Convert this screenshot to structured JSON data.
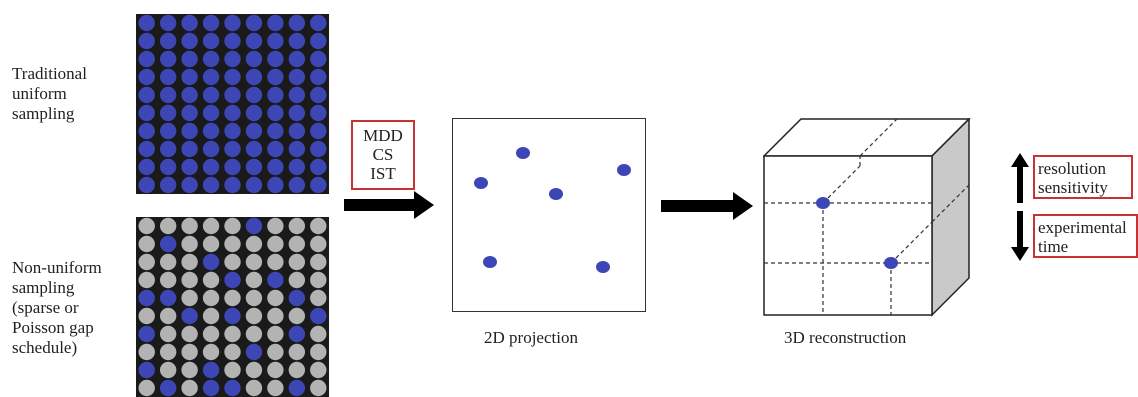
{
  "labels": {
    "traditional": "Traditional\nuniform\nsampling",
    "nonuniform": "Non-uniform\nsampling\n(sparse or\nPoisson gap\nschedule)"
  },
  "methods": [
    "MDD",
    "CS",
    "IST"
  ],
  "captions": {
    "projection": "2D projection",
    "reconstruction": "3D reconstruction"
  },
  "effects": {
    "up": [
      "resolution",
      "sensitivity"
    ],
    "down": [
      "experimental",
      "time"
    ]
  },
  "colors": {
    "sampled_point": "#3d46b5",
    "unsampled_point": "#b3b3b3",
    "highlight_box": "#c83232",
    "arrow": "#000000"
  },
  "sampling": {
    "rows": 10,
    "cols": 9,
    "nonuniform_sampled": [
      [
        0,
        5
      ],
      [
        1,
        1
      ],
      [
        2,
        3
      ],
      [
        3,
        4
      ],
      [
        3,
        6
      ],
      [
        4,
        0
      ],
      [
        4,
        1
      ],
      [
        4,
        7
      ],
      [
        5,
        2
      ],
      [
        5,
        4
      ],
      [
        5,
        8
      ],
      [
        6,
        0
      ],
      [
        6,
        7
      ],
      [
        7,
        5
      ],
      [
        8,
        0
      ],
      [
        8,
        3
      ],
      [
        9,
        1
      ],
      [
        9,
        3
      ],
      [
        9,
        4
      ],
      [
        9,
        7
      ]
    ]
  }
}
